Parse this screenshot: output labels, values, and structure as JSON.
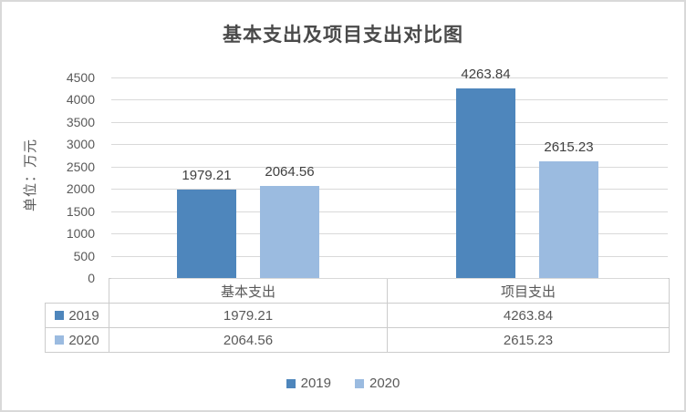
{
  "chart_data": {
    "type": "bar",
    "title": "基本支出及项目支出对比图",
    "ylabel": "单位：万元",
    "xlabel": "",
    "categories": [
      "基本支出",
      "项目支出"
    ],
    "series": [
      {
        "name": "2019",
        "color": "#4E86BC",
        "values": [
          1979.21,
          4263.84
        ]
      },
      {
        "name": "2020",
        "color": "#9BBBE0",
        "values": [
          2064.56,
          2615.23
        ]
      }
    ],
    "ylim": [
      0,
      4500
    ],
    "yticks": [
      0,
      500,
      1000,
      1500,
      2000,
      2500,
      3000,
      3500,
      4000,
      4500
    ],
    "grid": true,
    "legend_position": "bottom",
    "data_labels": true,
    "data_table": true
  },
  "colors": {
    "gridline": "#D9D9D9",
    "axis_text": "#595959",
    "title_text": "#4A4A4A",
    "value_label_text": "#404040",
    "table_border": "#CCCCCC"
  }
}
